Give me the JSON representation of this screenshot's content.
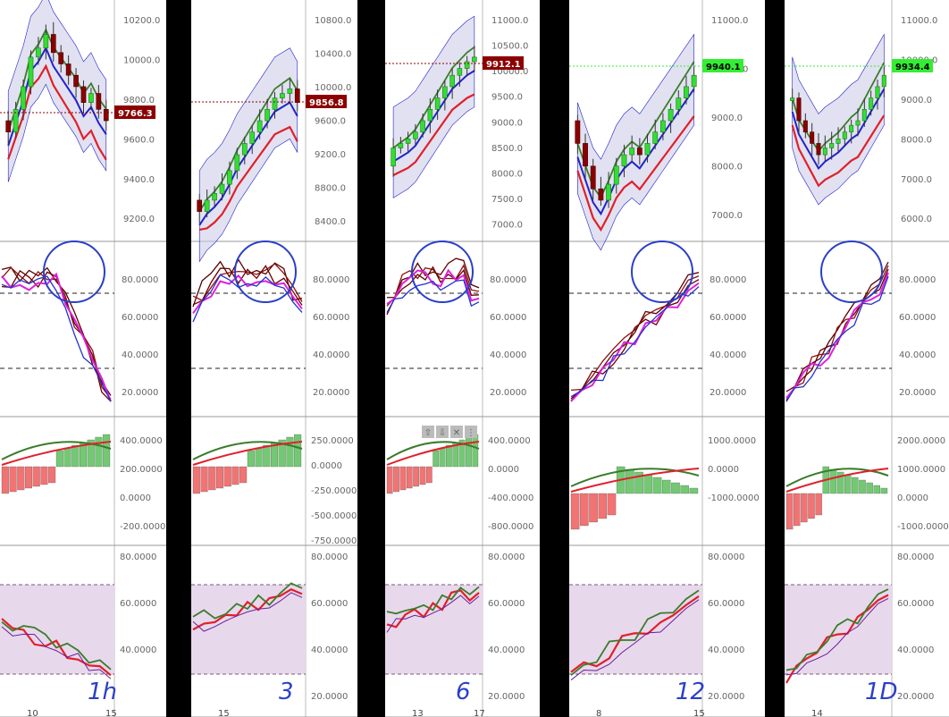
{
  "colors": {
    "background": "#000000",
    "panel": "#ffffff",
    "up": "#33dd33",
    "down": "#8b0000",
    "red_line": "#e0202a",
    "blue_line": "#2222cc",
    "green_line": "#3a7d2a",
    "annot": "#2a3fc9",
    "ribbon": "#c9c9e6",
    "band": "#e8d8ec",
    "hist_up": "#5bbf5b",
    "hist_down": "#ee5a5a"
  },
  "chart_data": [
    {
      "type": "candlestick-multipanel",
      "timeframe_note": "1h",
      "price": {
        "ticks": [
          "10200.0",
          "10000.0",
          "9800.0",
          "9600.0",
          "9400.0",
          "9200.0"
        ],
        "last_label": "9766.3",
        "last_label_color": "#8b0000"
      },
      "stoch": {
        "ticks": [
          "80.0000",
          "60.0000",
          "40.0000",
          "20.0000"
        ]
      },
      "macd": {
        "ticks": [
          "400.0000",
          "200.0000",
          "0.0000",
          "-200.0000"
        ]
      },
      "rsi": {
        "ticks": [
          "80.0000",
          "60.0000",
          "40.0000"
        ]
      },
      "x_ticks": [
        "10",
        "15"
      ]
    },
    {
      "type": "candlestick-multipanel",
      "timeframe_note": "3",
      "price": {
        "ticks": [
          "10800.0",
          "10400.0",
          "10000.0",
          "9600.0",
          "9200.0",
          "8800.0",
          "8400.0"
        ],
        "last_label": "9856.8",
        "last_label_color": "#8b0000"
      },
      "stoch": {
        "ticks": [
          "80.0000",
          "60.0000",
          "40.0000",
          "20.0000"
        ]
      },
      "macd": {
        "ticks": [
          "250.0000",
          "0.0000",
          "-250.0000",
          "-500.0000",
          "-750.0000"
        ]
      },
      "rsi": {
        "ticks": [
          "80.0000",
          "60.0000",
          "40.0000",
          "20.0000"
        ]
      },
      "x_ticks": [
        "15"
      ]
    },
    {
      "type": "candlestick-multipanel",
      "timeframe_note": "6",
      "price": {
        "ticks": [
          "11000.0",
          "10500.0",
          "10000.0",
          "9500.0",
          "9000.0",
          "8500.0",
          "8000.0",
          "7500.0",
          "7000.0"
        ],
        "last_label": "9912.1",
        "last_label_color": "#8b0000"
      },
      "stoch": {
        "ticks": [
          "80.0000",
          "60.0000",
          "40.0000",
          "20.0000"
        ]
      },
      "macd": {
        "ticks": [
          "400.0000",
          "0.0000",
          "-400.0000",
          "-800.0000"
        ]
      },
      "rsi": {
        "ticks": [
          "80.0000",
          "60.0000",
          "40.0000",
          "20.0000"
        ]
      },
      "x_ticks": [
        "13",
        "17"
      ],
      "toolbar_glyphs": [
        "⇧",
        "⇩",
        "✕",
        "⋮"
      ]
    },
    {
      "type": "candlestick-multipanel",
      "timeframe_note": "12",
      "price": {
        "ticks": [
          "11000.0",
          "10000.0",
          "9000.0",
          "8000.0",
          "7000.0"
        ],
        "last_label": "9940.1",
        "last_label_color": "#33ee33"
      },
      "stoch": {
        "ticks": [
          "80.0000",
          "60.0000",
          "40.0000",
          "20.0000"
        ]
      },
      "macd": {
        "ticks": [
          "1000.0000",
          "0.0000",
          "-1000.0000"
        ]
      },
      "rsi": {
        "ticks": [
          "80.0000",
          "60.0000",
          "40.0000",
          "20.0000"
        ]
      },
      "x_ticks": [
        "8",
        "15"
      ]
    },
    {
      "type": "candlestick-multipanel",
      "timeframe_note": "1D",
      "price": {
        "ticks": [
          "11000.0",
          "10000.0",
          "9000.0",
          "8000.0",
          "7000.0",
          "6000.0"
        ],
        "last_label": "9934.4",
        "last_label_color": "#33ee33"
      },
      "stoch": {
        "ticks": [
          "80.0000",
          "60.0000",
          "40.0000",
          "20.0000"
        ]
      },
      "macd": {
        "ticks": [
          "2000.0000",
          "1000.0000",
          "0.0000",
          "-1000.0000"
        ]
      },
      "rsi": {
        "ticks": [
          "80.0000",
          "60.0000",
          "40.0000",
          "20.0000"
        ]
      },
      "x_ticks": [
        "14"
      ]
    }
  ]
}
